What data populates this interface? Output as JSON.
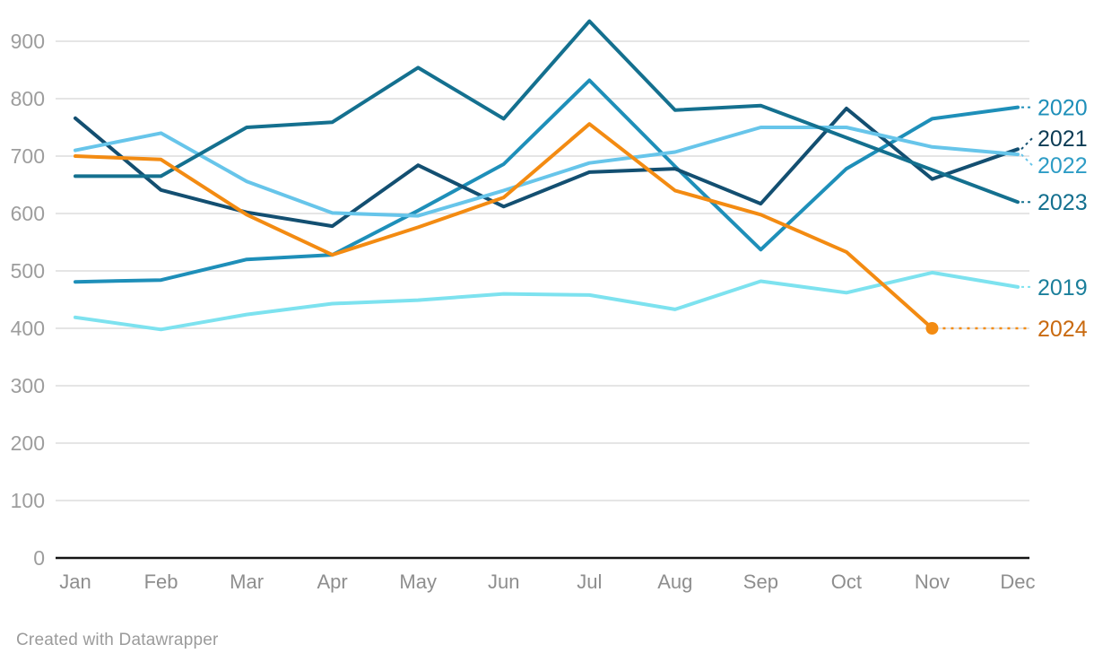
{
  "chart_data": {
    "type": "line",
    "title": "",
    "xlabel": "",
    "ylabel": "",
    "x": [
      "Jan",
      "Feb",
      "Mar",
      "Apr",
      "May",
      "Jun",
      "Jul",
      "Aug",
      "Sep",
      "Oct",
      "Nov",
      "Dec"
    ],
    "ylim": [
      0,
      900
    ],
    "yticks": [
      0,
      100,
      200,
      300,
      400,
      500,
      600,
      700,
      800,
      900
    ],
    "grid": "horizontal",
    "legend_position": "right-edge-direct-labels",
    "series": [
      {
        "name": "2019",
        "color": "#7de2ef",
        "label_color": "#1b7f9b",
        "values": [
          419,
          398,
          424,
          443,
          449,
          460,
          458,
          433,
          482,
          462,
          497,
          472
        ]
      },
      {
        "name": "2020",
        "color": "#1e8fb9",
        "label_color": "#1e8fb9",
        "values": [
          481,
          484,
          520,
          528,
          605,
          686,
          832,
          682,
          537,
          678,
          765,
          785
        ]
      },
      {
        "name": "2021",
        "color": "#134f71",
        "label_color": "#0d3c55",
        "values": [
          766,
          641,
          602,
          578,
          684,
          612,
          672,
          678,
          617,
          783,
          660,
          712
        ]
      },
      {
        "name": "2022",
        "color": "#67c5ea",
        "label_color": "#2d9cc5",
        "values": [
          710,
          740,
          656,
          601,
          596,
          640,
          688,
          707,
          750,
          750,
          716,
          703
        ]
      },
      {
        "name": "2023",
        "color": "#14708f",
        "label_color": "#14708f",
        "values": [
          665,
          665,
          750,
          759,
          854,
          765,
          935,
          780,
          788,
          732,
          676,
          620
        ]
      },
      {
        "name": "2024",
        "color": "#f38b12",
        "label_color": "#c96a10",
        "values": [
          700,
          694,
          598,
          528,
          576,
          628,
          756,
          640,
          598,
          533,
          400
        ],
        "end_marker": true,
        "dotted_connector": true
      }
    ]
  },
  "footer": {
    "credit": "Created with Datawrapper"
  }
}
